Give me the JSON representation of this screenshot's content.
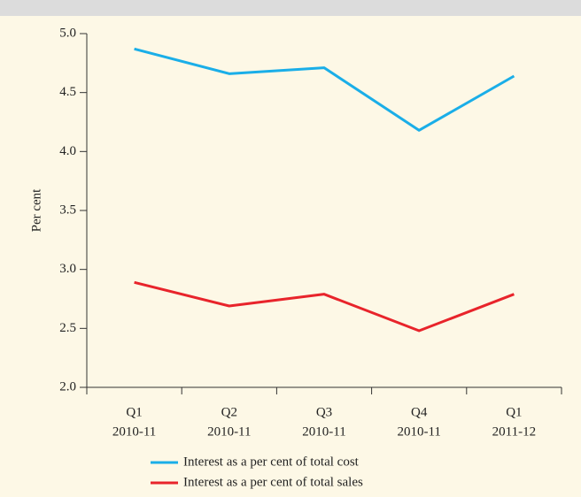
{
  "chart_data": {
    "type": "line",
    "y_label": "Per cent",
    "categories": [
      [
        "Q1",
        "2010-11"
      ],
      [
        "Q2",
        "2010-11"
      ],
      [
        "Q3",
        "2010-11"
      ],
      [
        "Q4",
        "2010-11"
      ],
      [
        "Q1",
        "2011-12"
      ]
    ],
    "series": [
      {
        "name": "Interest as a per cent of total cost",
        "color": "#1aaee8",
        "values": [
          4.87,
          4.66,
          4.71,
          4.18,
          4.64
        ]
      },
      {
        "name": "Interest as a per cent of total sales",
        "color": "#e8242b",
        "values": [
          2.89,
          2.69,
          2.79,
          2.48,
          2.79
        ]
      }
    ],
    "ylim": [
      2,
      5
    ],
    "yticks": [
      {
        "value": 2,
        "label": "2.0"
      },
      {
        "value": 2.5,
        "label": "2.5"
      },
      {
        "value": 3,
        "label": "3.0"
      },
      {
        "value": 3.5,
        "label": "3.5"
      },
      {
        "value": 4,
        "label": "4.0"
      },
      {
        "value": 4.5,
        "label": "4.5"
      },
      {
        "value": 5,
        "label": "5.0"
      }
    ],
    "grid": false
  }
}
